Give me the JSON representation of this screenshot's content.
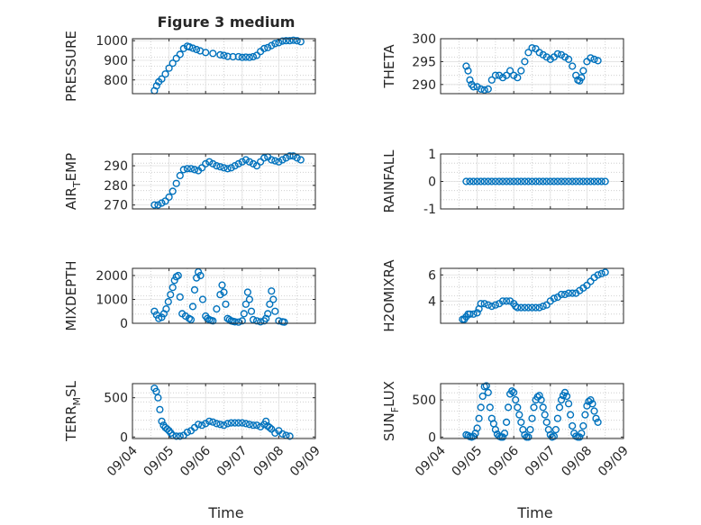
{
  "figure": {
    "title": "Figure 3 medium"
  },
  "chart_data": [
    {
      "type": "scatter",
      "ylabel": "PRESSURE",
      "ylim": [
        730,
        1010
      ],
      "yticks": [
        800,
        900,
        1000
      ],
      "yticklabels": [
        "800",
        "900",
        "1000"
      ],
      "xlim": [
        0,
        5
      ],
      "xticklabels": [
        "09/04",
        "09/05",
        "09/06",
        "09/07",
        "09/08",
        "09/09"
      ],
      "grid": "minor-dotted",
      "series": [
        {
          "color": "#0072BD",
          "x": [
            0.6,
            0.66,
            0.72,
            0.8,
            0.9,
            1.0,
            1.1,
            1.2,
            1.3,
            1.4,
            1.5,
            1.56,
            1.65,
            1.75,
            1.85,
            2.0,
            2.2,
            2.4,
            2.5,
            2.6,
            2.75,
            2.9,
            3.0,
            3.1,
            3.2,
            3.3,
            3.4,
            3.5,
            3.6,
            3.7,
            3.8,
            3.9,
            4.0,
            4.1,
            4.2,
            4.3,
            4.4,
            4.5,
            4.6
          ],
          "y": [
            745,
            770,
            790,
            805,
            830,
            860,
            885,
            910,
            930,
            960,
            972,
            968,
            962,
            955,
            948,
            940,
            935,
            928,
            925,
            920,
            918,
            918,
            915,
            916,
            915,
            918,
            925,
            945,
            960,
            965,
            975,
            985,
            990,
            998,
            1000,
            1000,
            1002,
            1000,
            995
          ]
        }
      ]
    },
    {
      "type": "scatter",
      "ylabel": "THETA",
      "ylim": [
        288,
        300
      ],
      "yticks": [
        290,
        295,
        300
      ],
      "yticklabels": [
        "290",
        "295",
        "300"
      ],
      "xlim": [
        0,
        5
      ],
      "xticklabels": [
        "09/04",
        "09/05",
        "09/06",
        "09/07",
        "09/08",
        "09/09"
      ],
      "grid": "minor-dotted",
      "series": [
        {
          "color": "#0072BD",
          "x": [
            0.7,
            0.75,
            0.8,
            0.85,
            0.9,
            1.0,
            1.1,
            1.2,
            1.3,
            1.4,
            1.5,
            1.6,
            1.7,
            1.8,
            1.9,
            2.0,
            2.1,
            2.2,
            2.3,
            2.4,
            2.5,
            2.6,
            2.7,
            2.8,
            2.9,
            3.0,
            3.1,
            3.2,
            3.3,
            3.4,
            3.5,
            3.6,
            3.7,
            3.75,
            3.8,
            3.85,
            3.9,
            4.0,
            4.1,
            4.2,
            4.3
          ],
          "y": [
            294,
            293,
            291,
            290,
            289.5,
            289.5,
            289,
            288.8,
            289,
            291,
            292,
            292,
            291.5,
            292,
            293,
            292,
            291.5,
            293,
            295,
            297,
            298,
            297.8,
            297,
            296.5,
            296,
            295.5,
            296,
            296.7,
            296.5,
            296,
            295.5,
            294,
            292,
            291,
            290.8,
            291.5,
            293,
            295,
            295.8,
            295.5,
            295.2
          ]
        }
      ]
    },
    {
      "type": "scatter",
      "ylabel": "AIR_TEMP",
      "ylim": [
        268,
        296
      ],
      "yticks": [
        270,
        280,
        290
      ],
      "yticklabels": [
        "270",
        "280",
        "290"
      ],
      "xlim": [
        0,
        5
      ],
      "xticklabels": [
        "09/04",
        "09/05",
        "09/06",
        "09/07",
        "09/08",
        "09/09"
      ],
      "grid": "minor-dotted",
      "series": [
        {
          "color": "#0072BD",
          "x": [
            0.6,
            0.7,
            0.8,
            0.9,
            1.0,
            1.1,
            1.2,
            1.3,
            1.4,
            1.5,
            1.6,
            1.7,
            1.8,
            1.9,
            2.0,
            2.1,
            2.2,
            2.3,
            2.4,
            2.5,
            2.6,
            2.7,
            2.8,
            2.9,
            3.0,
            3.1,
            3.2,
            3.3,
            3.4,
            3.5,
            3.6,
            3.7,
            3.8,
            3.9,
            4.0,
            4.1,
            4.2,
            4.3,
            4.4,
            4.5,
            4.6
          ],
          "y": [
            270,
            270,
            271,
            272,
            274,
            277,
            281,
            285,
            288,
            288.5,
            288.5,
            288,
            287.5,
            289,
            291,
            292,
            291,
            290,
            289.5,
            289,
            288.5,
            289,
            290,
            291,
            292,
            293,
            292,
            291,
            290,
            292,
            294,
            294.5,
            293,
            292.5,
            292,
            293,
            294,
            295,
            295,
            294,
            293
          ]
        }
      ]
    },
    {
      "type": "scatter",
      "ylabel": "RAINFALL",
      "ylim": [
        -1,
        1
      ],
      "yticks": [
        -1,
        0,
        1
      ],
      "yticklabels": [
        "-1",
        "0",
        "1"
      ],
      "xlim": [
        0,
        5
      ],
      "xticklabels": [
        "09/04",
        "09/05",
        "09/06",
        "09/07",
        "09/08",
        "09/09"
      ],
      "grid": "minor-dotted",
      "series": [
        {
          "color": "#0072BD",
          "x": [
            0.7,
            0.8,
            0.9,
            1.0,
            1.1,
            1.2,
            1.3,
            1.4,
            1.5,
            1.6,
            1.7,
            1.8,
            1.9,
            2.0,
            2.1,
            2.2,
            2.3,
            2.4,
            2.5,
            2.6,
            2.7,
            2.8,
            2.9,
            3.0,
            3.1,
            3.2,
            3.3,
            3.4,
            3.5,
            3.6,
            3.7,
            3.8,
            3.9,
            4.0,
            4.1,
            4.2,
            4.3,
            4.4,
            4.5
          ],
          "y": [
            0,
            0,
            0,
            0,
            0,
            0,
            0,
            0,
            0,
            0,
            0,
            0,
            0,
            0,
            0,
            0,
            0,
            0,
            0,
            0,
            0,
            0,
            0,
            0,
            0,
            0,
            0,
            0,
            0,
            0,
            0,
            0,
            0,
            0,
            0,
            0,
            0,
            0,
            0
          ]
        }
      ]
    },
    {
      "type": "scatter",
      "ylabel": "MIXDEPTH",
      "ylim": [
        0,
        2300
      ],
      "yticks": [
        0,
        1000,
        2000
      ],
      "yticklabels": [
        "0",
        "1000",
        "2000"
      ],
      "xlim": [
        0,
        5
      ],
      "xticklabels": [
        "09/04",
        "09/05",
        "09/06",
        "09/07",
        "09/08",
        "09/09"
      ],
      "grid": "minor-dotted",
      "series": [
        {
          "color": "#0072BD",
          "x": [
            0.6,
            0.66,
            0.72,
            0.8,
            0.86,
            0.92,
            0.98,
            1.04,
            1.1,
            1.15,
            1.2,
            1.25,
            1.3,
            1.36,
            1.45,
            1.55,
            1.6,
            1.65,
            1.7,
            1.75,
            1.8,
            1.86,
            1.92,
            2.0,
            2.05,
            2.1,
            2.15,
            2.2,
            2.3,
            2.4,
            2.45,
            2.5,
            2.55,
            2.6,
            2.65,
            2.7,
            2.75,
            2.8,
            2.9,
            3.0,
            3.05,
            3.1,
            3.15,
            3.2,
            3.25,
            3.3,
            3.4,
            3.5,
            3.6,
            3.65,
            3.7,
            3.75,
            3.8,
            3.85,
            3.9,
            4.0,
            4.1,
            4.15
          ],
          "y": [
            500,
            350,
            200,
            250,
            400,
            600,
            900,
            1200,
            1500,
            1800,
            1950,
            2000,
            1100,
            400,
            300,
            200,
            150,
            700,
            1400,
            1900,
            2150,
            2000,
            1000,
            300,
            200,
            150,
            120,
            100,
            600,
            1200,
            1600,
            1300,
            800,
            200,
            150,
            100,
            80,
            60,
            50,
            100,
            400,
            800,
            1300,
            1000,
            500,
            150,
            100,
            60,
            100,
            200,
            400,
            800,
            1350,
            1000,
            500,
            100,
            60,
            50
          ]
        }
      ]
    },
    {
      "type": "scatter",
      "ylabel": "H2OMIXRA",
      "ylim": [
        2.3,
        6.5
      ],
      "yticks": [
        4,
        6
      ],
      "yticklabels": [
        "4",
        "6"
      ],
      "xlim": [
        0,
        5
      ],
      "xticklabels": [
        "09/04",
        "09/05",
        "09/06",
        "09/07",
        "09/08",
        "09/09"
      ],
      "grid": "minor-dotted",
      "series": [
        {
          "color": "#0072BD",
          "x": [
            0.6,
            0.65,
            0.7,
            0.75,
            0.8,
            0.9,
            1.0,
            1.05,
            1.1,
            1.2,
            1.3,
            1.4,
            1.5,
            1.6,
            1.7,
            1.8,
            1.9,
            2.0,
            2.05,
            2.1,
            2.2,
            2.3,
            2.4,
            2.5,
            2.6,
            2.7,
            2.8,
            2.9,
            3.0,
            3.1,
            3.2,
            3.3,
            3.4,
            3.5,
            3.6,
            3.7,
            3.8,
            3.9,
            4.0,
            4.1,
            4.2,
            4.3,
            4.4,
            4.5
          ],
          "y": [
            2.6,
            2.6,
            2.8,
            3.0,
            3.0,
            3.0,
            3.1,
            3.4,
            3.8,
            3.8,
            3.7,
            3.6,
            3.7,
            3.8,
            4.0,
            4.0,
            4.0,
            3.8,
            3.6,
            3.5,
            3.5,
            3.5,
            3.5,
            3.5,
            3.5,
            3.5,
            3.6,
            3.7,
            4.0,
            4.2,
            4.3,
            4.5,
            4.5,
            4.6,
            4.6,
            4.6,
            4.8,
            5.0,
            5.2,
            5.5,
            5.8,
            6.0,
            6.1,
            6.2
          ]
        }
      ]
    },
    {
      "type": "scatter",
      "ylabel": "TERR_MSL",
      "ylim": [
        -20,
        680
      ],
      "yticks": [
        0,
        500
      ],
      "yticklabels": [
        "0",
        "500"
      ],
      "xlim": [
        0,
        5
      ],
      "xticklabels": [
        "09/04",
        "09/05",
        "09/06",
        "09/07",
        "09/08",
        "09/09"
      ],
      "grid": "minor-dotted",
      "series": [
        {
          "color": "#0072BD",
          "x": [
            0.6,
            0.65,
            0.7,
            0.75,
            0.8,
            0.85,
            0.9,
            0.95,
            1.0,
            1.05,
            1.1,
            1.2,
            1.3,
            1.4,
            1.5,
            1.6,
            1.7,
            1.8,
            1.9,
            2.0,
            2.1,
            2.2,
            2.3,
            2.4,
            2.5,
            2.6,
            2.7,
            2.8,
            2.9,
            3.0,
            3.1,
            3.2,
            3.3,
            3.4,
            3.5,
            3.6,
            3.65,
            3.7,
            3.75,
            3.8,
            3.9,
            4.0,
            4.1,
            4.2,
            4.3
          ],
          "y": [
            620,
            580,
            500,
            350,
            200,
            150,
            120,
            100,
            80,
            50,
            20,
            10,
            10,
            20,
            60,
            80,
            120,
            160,
            150,
            170,
            200,
            190,
            170,
            160,
            150,
            170,
            180,
            180,
            180,
            180,
            170,
            160,
            150,
            150,
            130,
            160,
            200,
            140,
            120,
            100,
            50,
            80,
            40,
            20,
            10
          ]
        }
      ]
    },
    {
      "type": "scatter",
      "ylabel": "SUN_FLUX",
      "ylim": [
        -20,
        720
      ],
      "yticks": [
        0,
        500
      ],
      "yticklabels": [
        "0",
        "500"
      ],
      "xlim": [
        0,
        5
      ],
      "xticklabels": [
        "09/04",
        "09/05",
        "09/06",
        "09/07",
        "09/08",
        "09/09"
      ],
      "grid": "minor-dotted",
      "series": [
        {
          "color": "#0072BD",
          "x": [
            0.7,
            0.75,
            0.8,
            0.85,
            0.9,
            0.95,
            1.0,
            1.05,
            1.1,
            1.15,
            1.2,
            1.25,
            1.3,
            1.35,
            1.4,
            1.45,
            1.5,
            1.55,
            1.6,
            1.65,
            1.7,
            1.75,
            1.8,
            1.85,
            1.9,
            1.95,
            2.0,
            2.05,
            2.1,
            2.15,
            2.2,
            2.25,
            2.3,
            2.35,
            2.4,
            2.45,
            2.5,
            2.55,
            2.6,
            2.65,
            2.7,
            2.75,
            2.8,
            2.85,
            2.9,
            2.95,
            3.0,
            3.05,
            3.1,
            3.15,
            3.2,
            3.25,
            3.3,
            3.35,
            3.4,
            3.45,
            3.5,
            3.55,
            3.6,
            3.65,
            3.7,
            3.75,
            3.8,
            3.85,
            3.9,
            3.95,
            4.0,
            4.05,
            4.1,
            4.15,
            4.2,
            4.25,
            4.3
          ],
          "y": [
            30,
            20,
            5,
            0,
            10,
            50,
            120,
            250,
            400,
            550,
            680,
            690,
            600,
            400,
            250,
            180,
            100,
            40,
            10,
            0,
            0,
            50,
            200,
            400,
            580,
            620,
            600,
            500,
            400,
            300,
            200,
            100,
            30,
            0,
            0,
            100,
            250,
            400,
            500,
            540,
            560,
            500,
            400,
            300,
            200,
            100,
            30,
            0,
            10,
            100,
            250,
            400,
            500,
            560,
            600,
            550,
            450,
            300,
            150,
            50,
            10,
            0,
            0,
            50,
            150,
            300,
            420,
            480,
            500,
            450,
            350,
            250,
            200
          ]
        }
      ]
    }
  ],
  "panels": [
    {
      "ylabel_main": "PRESSURE",
      "ylabel_sub": ""
    },
    {
      "ylabel_main": "THETA",
      "ylabel_sub": ""
    },
    {
      "ylabel_main": "AIR",
      "ylabel_sub": "T",
      "ylabel_rest": "EMP"
    },
    {
      "ylabel_main": "RAINFALL",
      "ylabel_sub": ""
    },
    {
      "ylabel_main": "MIXDEPTH",
      "ylabel_sub": ""
    },
    {
      "ylabel_main": "H2OMIXRA",
      "ylabel_sub": ""
    },
    {
      "ylabel_main": "TERR",
      "ylabel_sub": "M",
      "ylabel_rest": "SL"
    },
    {
      "ylabel_main": "SUN",
      "ylabel_sub": "F",
      "ylabel_rest": "LUX"
    }
  ],
  "xlabel_bottom": "Time"
}
